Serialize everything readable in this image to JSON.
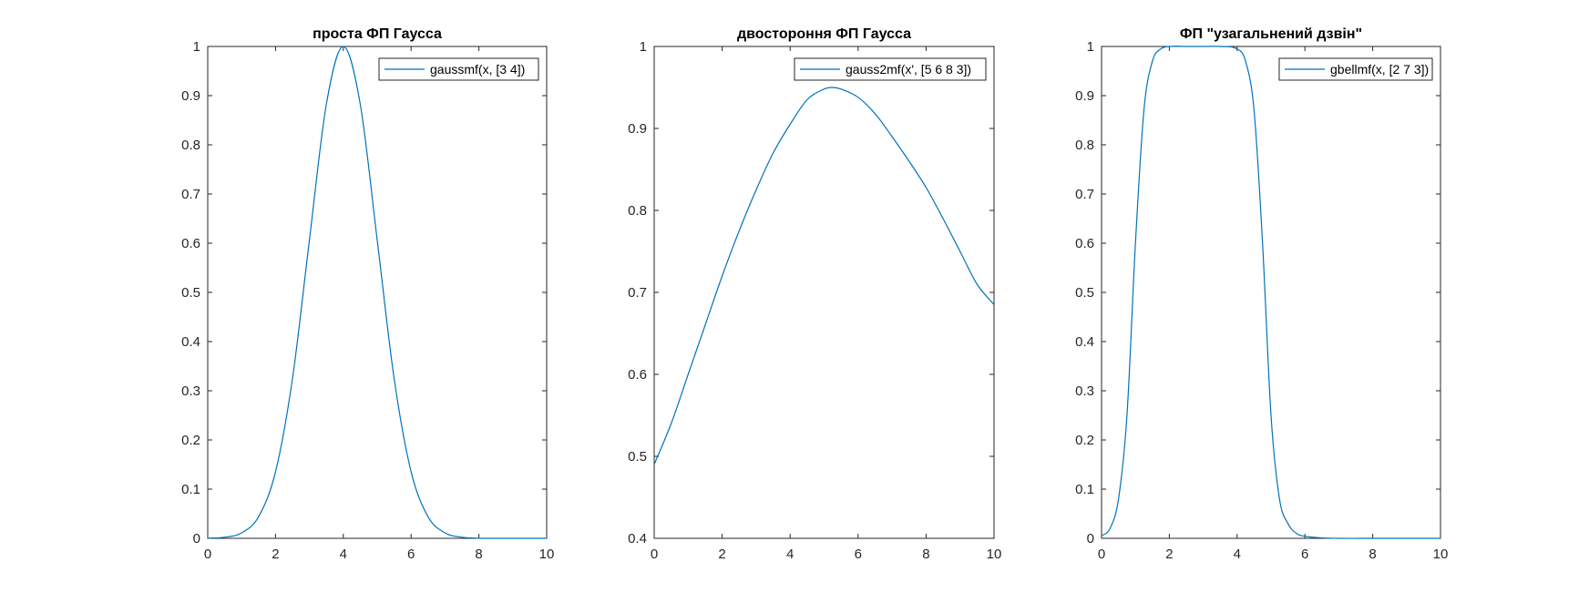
{
  "figure": {
    "background": "#ffffff",
    "axes_color": "#262626",
    "line_color": "#0072BD"
  },
  "chart_data": [
    {
      "type": "line",
      "title": "проста ФП Гаусса",
      "xlabel": "",
      "ylabel": "",
      "xlim": [
        0,
        10
      ],
      "ylim": [
        0,
        1
      ],
      "xticks": [
        0,
        2,
        4,
        6,
        8,
        10
      ],
      "yticks": [
        0,
        0.1,
        0.2,
        0.3,
        0.4,
        0.5,
        0.6,
        0.7,
        0.8,
        0.9,
        1
      ],
      "grid": false,
      "legend_position": "top-right",
      "series": [
        {
          "name": "gaussmf(x, [3 4])",
          "color": "#0072BD",
          "x": [
            0,
            0.5,
            1,
            1.5,
            2,
            2.5,
            3,
            3.5,
            4,
            4.5,
            5,
            5.5,
            6,
            6.5,
            7,
            7.5,
            8,
            8.5,
            9,
            9.5,
            10
          ],
          "y": [
            0.0003,
            0.0022,
            0.0111,
            0.0439,
            0.1353,
            0.3247,
            0.6065,
            0.8825,
            1.0,
            0.8825,
            0.6065,
            0.3247,
            0.1353,
            0.0439,
            0.0111,
            0.0022,
            0.0003,
            0.0,
            0.0,
            0.0,
            0.0
          ]
        }
      ]
    },
    {
      "type": "line",
      "title": "двостороння ФП Гаусса",
      "xlabel": "",
      "ylabel": "",
      "xlim": [
        0,
        10
      ],
      "ylim": [
        0.4,
        1
      ],
      "xticks": [
        0,
        2,
        4,
        6,
        8,
        10
      ],
      "yticks": [
        0.4,
        0.5,
        0.6,
        0.7,
        0.8,
        0.9,
        1
      ],
      "grid": false,
      "legend_position": "top-right",
      "series": [
        {
          "name": "gauss2mf(x', [5 6 8 3])",
          "color": "#0072BD",
          "x": [
            0,
            0.5,
            1,
            1.5,
            2,
            2.5,
            3,
            3.5,
            4,
            4.5,
            5,
            5.25,
            5.5,
            6,
            6.5,
            7,
            7.5,
            8,
            8.5,
            9,
            9.5,
            10
          ],
          "y": [
            0.49,
            0.54,
            0.6,
            0.66,
            0.72,
            0.775,
            0.825,
            0.87,
            0.905,
            0.935,
            0.948,
            0.95,
            0.948,
            0.938,
            0.918,
            0.89,
            0.86,
            0.828,
            0.79,
            0.75,
            0.71,
            0.685
          ]
        }
      ]
    },
    {
      "type": "line",
      "title": "ФП \"узагальнений дзвін\"",
      "xlabel": "",
      "ylabel": "",
      "xlim": [
        0,
        10
      ],
      "ylim": [
        0,
        1
      ],
      "xticks": [
        0,
        2,
        4,
        6,
        8,
        10
      ],
      "yticks": [
        0,
        0.1,
        0.2,
        0.3,
        0.4,
        0.5,
        0.6,
        0.7,
        0.8,
        0.9,
        1
      ],
      "grid": false,
      "legend_position": "top-right",
      "series": [
        {
          "name": "gbellmf(x, [2 7 3])",
          "color": "#0072BD",
          "x": [
            0,
            0.25,
            0.5,
            0.75,
            1,
            1.25,
            1.5,
            1.75,
            2,
            2.5,
            3,
            3.5,
            4,
            4.25,
            4.5,
            4.75,
            5,
            5.25,
            5.5,
            5.75,
            6,
            6.5,
            7,
            8,
            9,
            10
          ],
          "y": [
            0.005,
            0.02,
            0.08,
            0.25,
            0.6,
            0.87,
            0.97,
            0.995,
            1.0,
            1.0,
            1.0,
            1.0,
            0.995,
            0.97,
            0.87,
            0.6,
            0.25,
            0.08,
            0.03,
            0.01,
            0.004,
            0.001,
            0.0,
            0.0,
            0.0,
            0.0
          ]
        }
      ]
    }
  ]
}
